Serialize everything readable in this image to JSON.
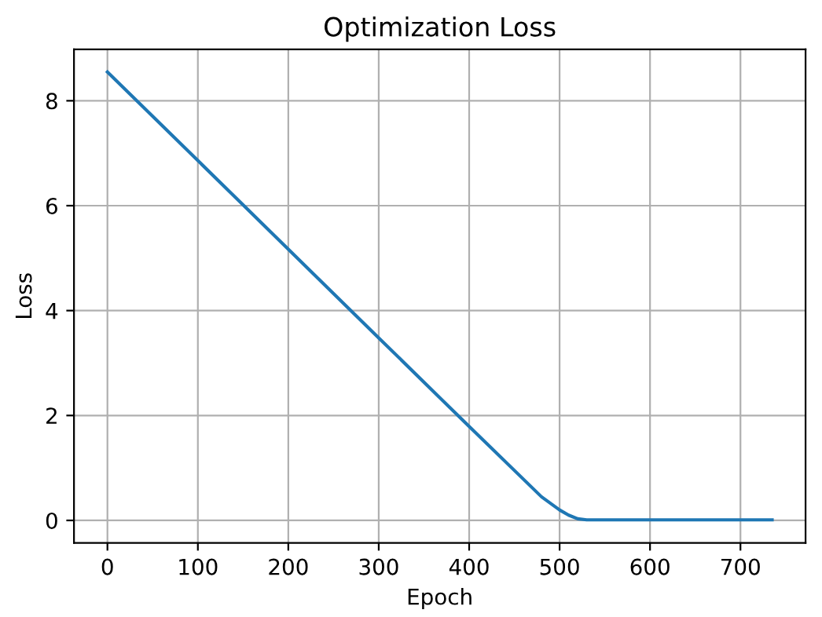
{
  "chart_data": {
    "type": "line",
    "title": "Optimization Loss",
    "xlabel": "Epoch",
    "ylabel": "Loss",
    "series": [
      {
        "color": "#1f77b4",
        "x": [
          0,
          100,
          200,
          300,
          400,
          480,
          500,
          510,
          520,
          530,
          600,
          700,
          735
        ],
        "values": [
          8.55,
          6.86,
          5.17,
          3.48,
          1.79,
          0.45,
          0.2,
          0.1,
          0.03,
          0.01,
          0.01,
          0.01,
          0.01
        ]
      }
    ],
    "xlim": [
      -37,
      772
    ],
    "ylim": [
      -0.43,
      8.98
    ],
    "xticks": [
      0,
      100,
      200,
      300,
      400,
      500,
      600,
      700
    ],
    "yticks": [
      0,
      2,
      4,
      6,
      8
    ],
    "grid": true
  }
}
